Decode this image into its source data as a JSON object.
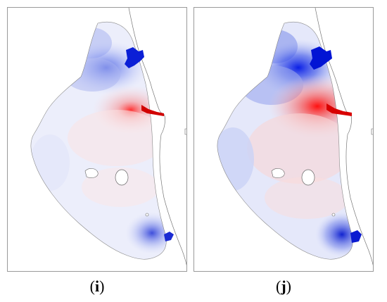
{
  "panels": [
    {
      "id": "i",
      "label_open": "(",
      "label_letter": "i",
      "label_close": ")"
    },
    {
      "id": "j",
      "label_open": "(",
      "label_letter": "j",
      "label_close": ")"
    }
  ],
  "colors": {
    "positive": "#ff0000",
    "negative": "#0000e6",
    "land_line": "#555555",
    "frame": "#9a9a9a"
  }
}
